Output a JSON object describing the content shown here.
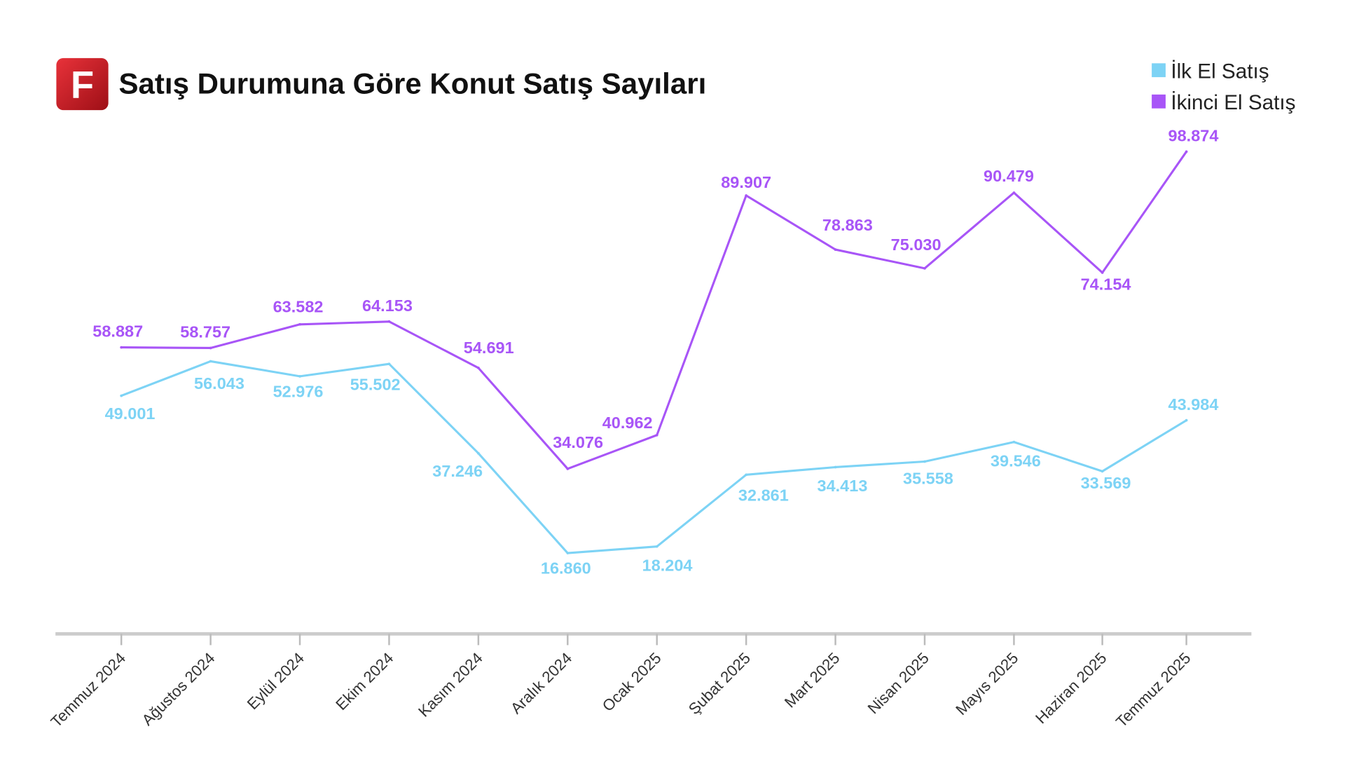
{
  "header": {
    "logo_letter": "F",
    "title": "Satış Durumuna Göre Konut Satış Sayıları"
  },
  "chart_data": {
    "type": "line",
    "title": "Satış Durumuna Göre Konut Satış Sayıları",
    "xlabel": "",
    "ylabel": "",
    "ylim": [
      0,
      105
    ],
    "grid": false,
    "legend_position": "top-right",
    "categories": [
      "Temmuz 2024",
      "Ağustos 2024",
      "Eylül 2024",
      "Ekim 2024",
      "Kasım 2024",
      "Aralık 2024",
      "Ocak 2025",
      "Şubat 2025",
      "Mart 2025",
      "Nisan 2025",
      "Mayıs 2025",
      "Haziran 2025",
      "Temmuz 2025"
    ],
    "series": [
      {
        "name": "İlk El Satış",
        "color": "#7dd3f5",
        "values": [
          49.001,
          56.043,
          52.976,
          55.502,
          37.246,
          16.86,
          18.204,
          32.861,
          34.413,
          35.558,
          39.546,
          33.569,
          43.984
        ],
        "labels": [
          "49.001",
          "56.043",
          "52.976",
          "55.502",
          "37.246",
          "16.860",
          "18.204",
          "32.861",
          "34.413",
          "35.558",
          "39.546",
          "33.569",
          "43.984"
        ]
      },
      {
        "name": "İkinci El Satış",
        "color": "#a855f7",
        "values": [
          58.887,
          58.757,
          63.582,
          64.153,
          54.691,
          34.076,
          40.962,
          89.907,
          78.863,
          75.03,
          90.479,
          74.154,
          98.874
        ],
        "labels": [
          "58.887",
          "58.757",
          "63.582",
          "64.153",
          "54.691",
          "34.076",
          "40.962",
          "89.907",
          "78.863",
          "75.030",
          "90.479",
          "74.154",
          "98.874"
        ]
      }
    ]
  }
}
